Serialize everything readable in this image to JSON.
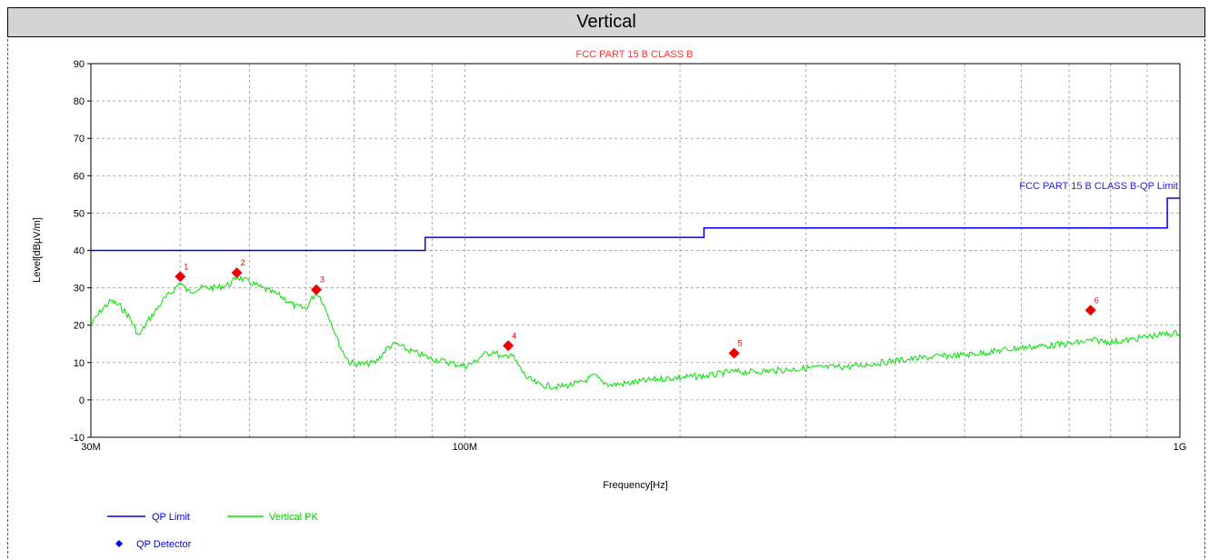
{
  "header": {
    "title": "Vertical"
  },
  "chart_data": {
    "type": "line",
    "title": "FCC PART 15 B CLASS B",
    "xlabel": "Frequency[Hz]",
    "ylabel": "Level[dBµV/m]",
    "xscale": "log",
    "xlim": [
      30000000,
      1000000000
    ],
    "ylim": [
      -10,
      90
    ],
    "yticks": [
      -10,
      0,
      10,
      20,
      30,
      40,
      50,
      60,
      70,
      80,
      90
    ],
    "xtick_labels": [
      {
        "value": 30000000,
        "label": "30M"
      },
      {
        "value": 100000000,
        "label": "100M"
      },
      {
        "value": 1000000000,
        "label": "1G"
      }
    ],
    "grid": true,
    "limit_label": "FCC PART 15 B CLASS B-QP Limit",
    "series": [
      {
        "name": "QP Limit",
        "color": "#0000ee",
        "style": "step",
        "points": [
          [
            30000000,
            40
          ],
          [
            88000000,
            40
          ],
          [
            88000000,
            43.5
          ],
          [
            216000000,
            43.5
          ],
          [
            216000000,
            46
          ],
          [
            960000000,
            46
          ],
          [
            960000000,
            54
          ],
          [
            1000000000,
            54
          ]
        ]
      },
      {
        "name": "Vertical PK",
        "color": "#00e000",
        "style": "line",
        "points": [
          [
            30000000,
            20
          ],
          [
            31000000,
            24
          ],
          [
            32000000,
            26.5
          ],
          [
            33000000,
            25
          ],
          [
            34000000,
            22
          ],
          [
            35000000,
            17
          ],
          [
            36000000,
            21
          ],
          [
            37000000,
            24
          ],
          [
            38000000,
            27
          ],
          [
            39000000,
            29
          ],
          [
            40000000,
            31.5
          ],
          [
            41000000,
            29
          ],
          [
            43000000,
            30
          ],
          [
            45000000,
            30
          ],
          [
            47000000,
            31
          ],
          [
            48000000,
            33
          ],
          [
            50000000,
            31.5
          ],
          [
            52000000,
            30
          ],
          [
            55000000,
            28
          ],
          [
            58000000,
            25
          ],
          [
            60000000,
            24.5
          ],
          [
            62000000,
            29
          ],
          [
            63000000,
            27
          ],
          [
            65000000,
            21
          ],
          [
            67000000,
            14
          ],
          [
            69000000,
            10
          ],
          [
            72000000,
            9.5
          ],
          [
            75000000,
            10
          ],
          [
            78000000,
            14
          ],
          [
            80000000,
            15
          ],
          [
            83000000,
            13.5
          ],
          [
            87000000,
            12
          ],
          [
            90000000,
            11
          ],
          [
            95000000,
            10
          ],
          [
            100000000,
            9
          ],
          [
            103000000,
            10
          ],
          [
            106000000,
            12
          ],
          [
            110000000,
            13
          ],
          [
            113000000,
            11
          ],
          [
            116000000,
            12.5
          ],
          [
            118000000,
            10
          ],
          [
            122000000,
            6
          ],
          [
            127000000,
            4
          ],
          [
            135000000,
            3.5
          ],
          [
            145000000,
            4.5
          ],
          [
            152000000,
            6.5
          ],
          [
            155000000,
            5
          ],
          [
            160000000,
            4
          ],
          [
            170000000,
            4.5
          ],
          [
            185000000,
            5.5
          ],
          [
            200000000,
            6
          ],
          [
            220000000,
            6.5
          ],
          [
            235000000,
            7.5
          ],
          [
            250000000,
            7.5
          ],
          [
            280000000,
            8
          ],
          [
            300000000,
            8.5
          ],
          [
            350000000,
            9
          ],
          [
            400000000,
            10.5
          ],
          [
            450000000,
            11.5
          ],
          [
            500000000,
            12
          ],
          [
            550000000,
            13
          ],
          [
            600000000,
            14
          ],
          [
            650000000,
            14.5
          ],
          [
            700000000,
            15
          ],
          [
            760000000,
            16
          ],
          [
            800000000,
            15.5
          ],
          [
            850000000,
            16
          ],
          [
            900000000,
            17
          ],
          [
            950000000,
            17.5
          ],
          [
            1000000000,
            18
          ]
        ]
      },
      {
        "name": "QP Detector",
        "color": "#0000ee",
        "style": "marker"
      }
    ],
    "markers": [
      {
        "label": "1",
        "x": 40000000,
        "y": 33
      },
      {
        "label": "2",
        "x": 48000000,
        "y": 34
      },
      {
        "label": "3",
        "x": 62000000,
        "y": 29.5
      },
      {
        "label": "4",
        "x": 115000000,
        "y": 14.5
      },
      {
        "label": "5",
        "x": 238000000,
        "y": 12.5
      },
      {
        "label": "6",
        "x": 750000000,
        "y": 24
      }
    ],
    "marker_color": "#ee0000"
  }
}
